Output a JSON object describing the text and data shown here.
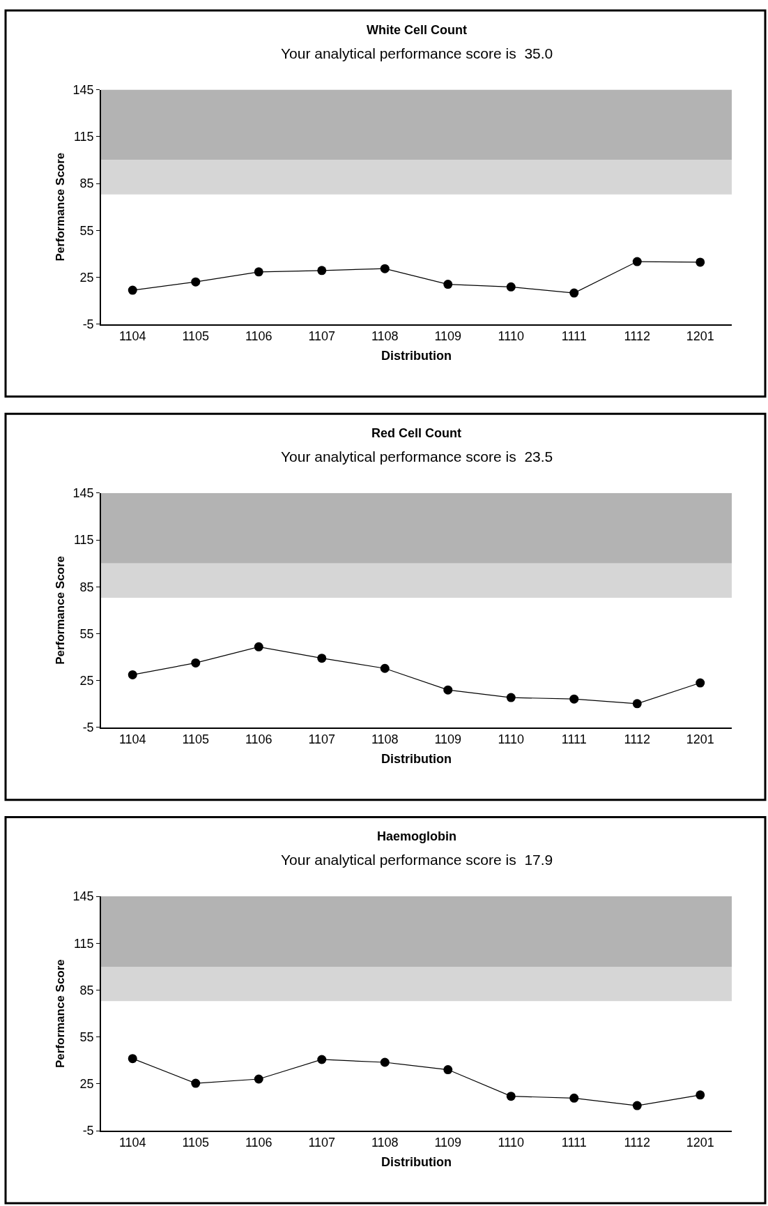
{
  "chart_data": [
    {
      "type": "line",
      "title": "White Cell Count",
      "subtitle": "Your analytical performance score is  35.0",
      "xlabel": "Distribution",
      "ylabel": "Performance Score",
      "categories": [
        "1104",
        "1105",
        "1106",
        "1107",
        "1108",
        "1109",
        "1110",
        "1111",
        "1112",
        "1201"
      ],
      "series": [
        {
          "color": "#000000",
          "values": [
            16.7,
            22.0,
            28.4,
            29.3,
            30.5,
            20.5,
            18.8,
            14.9,
            35.0,
            34.6
          ]
        }
      ],
      "ylim": [
        -5,
        145
      ],
      "yticks": [
        -5,
        25,
        55,
        85,
        115,
        145
      ],
      "grid": false,
      "marker": "circle",
      "line_style": "solid",
      "bands": [
        {
          "axis": "y",
          "from": 100,
          "to": 145,
          "color": "#b3b3b3"
        },
        {
          "axis": "y",
          "from": 78,
          "to": 100,
          "color": "#d6d6d6"
        }
      ]
    },
    {
      "type": "line",
      "title": "Red Cell Count",
      "subtitle": "Your analytical performance score is  23.5",
      "xlabel": "Distribution",
      "ylabel": "Performance Score",
      "categories": [
        "1104",
        "1105",
        "1106",
        "1107",
        "1108",
        "1109",
        "1110",
        "1111",
        "1112",
        "1201"
      ],
      "series": [
        {
          "color": "#000000",
          "values": [
            28.7,
            36.3,
            46.6,
            39.3,
            32.8,
            19.0,
            14.1,
            13.2,
            10.2,
            23.5
          ]
        }
      ],
      "ylim": [
        -5,
        145
      ],
      "yticks": [
        -5,
        25,
        55,
        85,
        115,
        145
      ],
      "grid": false,
      "marker": "circle",
      "line_style": "solid",
      "bands": [
        {
          "axis": "y",
          "from": 100,
          "to": 145,
          "color": "#b3b3b3"
        },
        {
          "axis": "y",
          "from": 78,
          "to": 100,
          "color": "#d6d6d6"
        }
      ]
    },
    {
      "type": "line",
      "title": "Haemoglobin",
      "subtitle": "Your analytical performance score is  17.9",
      "xlabel": "Distribution",
      "ylabel": "Performance Score",
      "categories": [
        "1104",
        "1105",
        "1106",
        "1107",
        "1108",
        "1109",
        "1110",
        "1111",
        "1112",
        "1201"
      ],
      "series": [
        {
          "color": "#000000",
          "values": [
            41.2,
            25.4,
            28.1,
            40.6,
            38.8,
            34.1,
            17.1,
            15.9,
            11.1,
            17.9
          ]
        }
      ],
      "ylim": [
        -5,
        145
      ],
      "yticks": [
        -5,
        25,
        55,
        85,
        115,
        145
      ],
      "grid": false,
      "marker": "circle",
      "line_style": "solid",
      "bands": [
        {
          "axis": "y",
          "from": 100,
          "to": 145,
          "color": "#b3b3b3"
        },
        {
          "axis": "y",
          "from": 78,
          "to": 100,
          "color": "#d6d6d6"
        }
      ]
    }
  ]
}
